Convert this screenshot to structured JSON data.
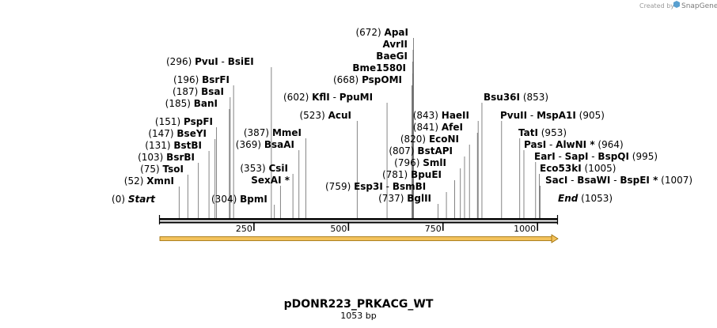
{
  "credit": {
    "prefix": "Created by",
    "brand": "SnapGene"
  },
  "plasmid": {
    "name": "pDONR223_PRKACG_WT",
    "length_label": "1053 bp",
    "length": 1053
  },
  "axis": {
    "ticks": [
      250,
      500,
      750,
      1000
    ]
  },
  "sites": [
    {
      "pos": "(0)",
      "names": [
        "Start"
      ],
      "italic": true,
      "x": 0
    },
    {
      "pos": "(52)",
      "names": [
        "XmnI"
      ],
      "x": 52
    },
    {
      "pos": "(75)",
      "names": [
        "TsoI"
      ],
      "x": 75
    },
    {
      "pos": "(103)",
      "names": [
        "BsrBI"
      ],
      "x": 103
    },
    {
      "pos": "(131)",
      "names": [
        "BstBI"
      ],
      "x": 131
    },
    {
      "pos": "(147)",
      "names": [
        "BseYI"
      ],
      "x": 147
    },
    {
      "pos": "(151)",
      "names": [
        "PspFI"
      ],
      "x": 151
    },
    {
      "pos": "(185)",
      "names": [
        "BanI"
      ],
      "x": 185
    },
    {
      "pos": "(187)",
      "names": [
        "BsaI"
      ],
      "x": 187
    },
    {
      "pos": "(196)",
      "names": [
        "BsrFI"
      ],
      "x": 196
    },
    {
      "pos": "(296)",
      "names": [
        "PvuI",
        "BsiEI"
      ],
      "x": 296
    },
    {
      "pos": "(304)",
      "names": [
        "BpmI"
      ],
      "x": 304
    },
    {
      "pos": "",
      "names": [
        "SexAI *"
      ],
      "x": 320
    },
    {
      "pos": "(353)",
      "names": [
        "CsiI"
      ],
      "x": 353
    },
    {
      "pos": "(369)",
      "names": [
        "BsaAI"
      ],
      "x": 369
    },
    {
      "pos": "(387)",
      "names": [
        "MmeI"
      ],
      "x": 387
    },
    {
      "pos": "(523)",
      "names": [
        "AcuI"
      ],
      "x": 523
    },
    {
      "pos": "(602)",
      "names": [
        "KflI",
        "PpuMI"
      ],
      "x": 602
    },
    {
      "pos": "(668)",
      "names": [
        "PspOMI"
      ],
      "x": 668
    },
    {
      "pos": "",
      "names": [
        "Bme1580I"
      ],
      "x": 670
    },
    {
      "pos": "",
      "names": [
        "BaeGI"
      ],
      "x": 670
    },
    {
      "pos": "",
      "names": [
        "AvrII"
      ],
      "x": 671
    },
    {
      "pos": "(672)",
      "names": [
        "ApaI"
      ],
      "x": 672
    },
    {
      "pos": "(737)",
      "names": [
        "BglII"
      ],
      "x": 737
    },
    {
      "pos": "(759)",
      "names": [
        "Esp3I",
        "BsmBI"
      ],
      "x": 759
    },
    {
      "pos": "(781)",
      "names": [
        "BpuEI"
      ],
      "x": 781
    },
    {
      "pos": "(796)",
      "names": [
        "SmlI"
      ],
      "x": 796
    },
    {
      "pos": "(807)",
      "names": [
        "BstAPI"
      ],
      "x": 807
    },
    {
      "pos": "(820)",
      "names": [
        "EcoNI"
      ],
      "x": 820
    },
    {
      "pos": "(841)",
      "names": [
        "AfeI"
      ],
      "x": 841
    },
    {
      "pos": "(843)",
      "names": [
        "HaeII"
      ],
      "x": 843
    },
    {
      "pos": "(853)",
      "names": [
        "Bsu36I"
      ],
      "x": 853
    },
    {
      "pos": "(905)",
      "names": [
        "PvuII",
        "MspA1I"
      ],
      "x": 905
    },
    {
      "pos": "(953)",
      "names": [
        "TatI"
      ],
      "x": 953
    },
    {
      "pos": "(964)",
      "names": [
        "PasI",
        "AlwNI *"
      ],
      "x": 964
    },
    {
      "pos": "(995)",
      "names": [
        "EarI",
        "SapI",
        "BspQI"
      ],
      "x": 995
    },
    {
      "pos": "(1005)",
      "names": [
        "Eco53kI"
      ],
      "x": 1005
    },
    {
      "pos": "(1007)",
      "names": [
        "SacI",
        "BsaWI",
        "BspEI *"
      ],
      "x": 1007
    },
    {
      "pos": "(1053)",
      "names": [
        "End"
      ],
      "italic": true,
      "x": 1053
    }
  ]
}
